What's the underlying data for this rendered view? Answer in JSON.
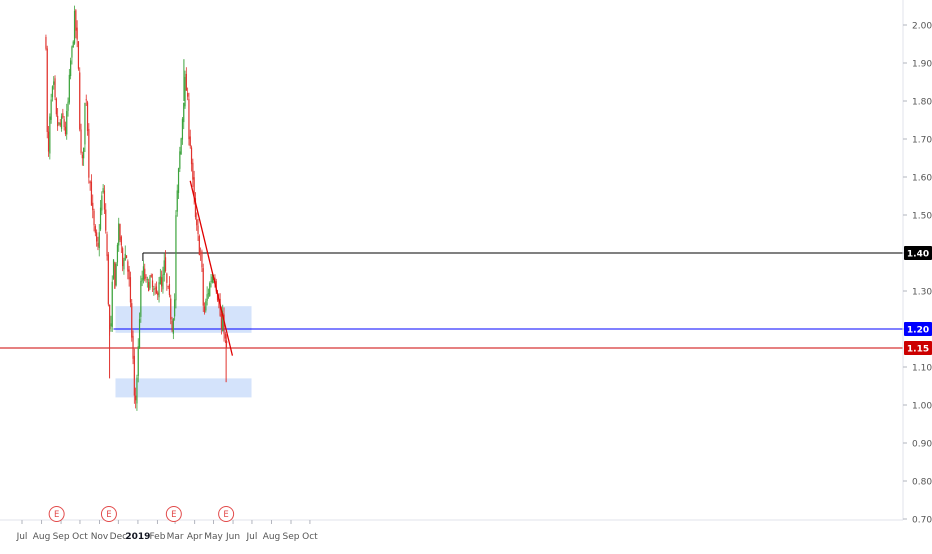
{
  "chart_data": {
    "type": "candlestick",
    "title": "",
    "xlabel": "",
    "ylabel": "",
    "ylim": [
      0.68,
      2.05
    ],
    "grid": false,
    "x_tick_labels": [
      "Jul",
      "Aug",
      "Sep",
      "Oct",
      "Nov",
      "Dec",
      "2019",
      "Feb",
      "Mar",
      "Apr",
      "May",
      "Jun",
      "Jul",
      "Aug",
      "Sep",
      "Oct"
    ],
    "y_tick_labels": [
      "0.70",
      "0.80",
      "0.90",
      "1.00",
      "1.10",
      "1.20",
      "1.30",
      "1.40",
      "1.50",
      "1.60",
      "1.70",
      "1.80",
      "1.90",
      "2.00"
    ],
    "y_ticks": [
      0.7,
      0.8,
      0.9,
      1.0,
      1.1,
      1.2,
      1.3,
      1.4,
      1.5,
      1.6,
      1.7,
      1.8,
      1.9,
      2.0
    ],
    "price_labels": [
      {
        "text": "1.40",
        "value": 1.4,
        "color": "#000000"
      },
      {
        "text": "1.20",
        "value": 1.2,
        "color": "#0000ff"
      },
      {
        "text": "1.15",
        "value": 1.15,
        "color": "#cc0000"
      }
    ],
    "earnings_markers": {
      "label": "E",
      "months": [
        "Aug",
        "Nov",
        "Feb",
        "May"
      ]
    },
    "horizontal_lines": [
      {
        "value": 1.4,
        "color": "#000000",
        "from": "2019-01"
      },
      {
        "value": 1.2,
        "color": "#0000ff",
        "from": "2018-11"
      },
      {
        "value": 1.15,
        "color": "#cc0000",
        "from": "2018-06"
      }
    ],
    "zones": [
      {
        "low": 1.19,
        "high": 1.26,
        "from": "2018-11",
        "to": "2019-05",
        "color": "#cfe0fb"
      },
      {
        "low": 1.02,
        "high": 1.07,
        "from": "2018-11",
        "to": "2019-05",
        "color": "#cfe0fb"
      }
    ],
    "trendline": {
      "from": {
        "date": "2019-03-25",
        "value": 1.59
      },
      "to": {
        "date": "2019-05-31",
        "value": 1.13
      },
      "color": "#e00000"
    },
    "colors": {
      "up": "#3da33d",
      "down": "#e0322d",
      "axis_text": "#555555"
    },
    "price_path": [
      [
        "2018-08-08",
        1.96
      ],
      [
        "2018-08-10",
        1.71
      ],
      [
        "2018-08-12",
        1.65
      ],
      [
        "2018-08-15",
        1.78
      ],
      [
        "2018-08-20",
        1.84
      ],
      [
        "2018-08-25",
        1.74
      ],
      [
        "2018-08-30",
        1.73
      ],
      [
        "2018-09-04",
        1.75
      ],
      [
        "2018-09-08",
        1.72
      ],
      [
        "2018-09-12",
        1.79
      ],
      [
        "2018-09-16",
        1.9
      ],
      [
        "2018-09-19",
        1.94
      ],
      [
        "2018-09-22",
        2.02
      ],
      [
        "2018-09-25",
        1.98
      ],
      [
        "2018-09-28",
        1.91
      ],
      [
        "2018-10-02",
        1.66
      ],
      [
        "2018-10-05",
        1.63
      ],
      [
        "2018-10-07",
        1.7
      ],
      [
        "2018-10-10",
        1.84
      ],
      [
        "2018-10-12",
        1.79
      ],
      [
        "2018-10-15",
        1.62
      ],
      [
        "2018-10-18",
        1.57
      ],
      [
        "2018-10-21",
        1.5
      ],
      [
        "2018-10-24",
        1.45
      ],
      [
        "2018-10-27",
        1.42
      ],
      [
        "2018-10-29",
        1.39
      ],
      [
        "2018-11-01",
        1.48
      ],
      [
        "2018-11-04",
        1.54
      ],
      [
        "2018-11-07",
        1.56
      ],
      [
        "2018-11-10",
        1.49
      ],
      [
        "2018-11-13",
        1.38
      ],
      [
        "2018-11-15",
        1.28
      ],
      [
        "2018-11-17",
        1.2
      ],
      [
        "2018-11-18",
        1.13
      ],
      [
        "2018-11-20",
        1.25
      ],
      [
        "2018-11-23",
        1.38
      ],
      [
        "2018-11-26",
        1.31
      ],
      [
        "2018-11-29",
        1.43
      ],
      [
        "2018-12-02",
        1.46
      ],
      [
        "2018-12-05",
        1.42
      ],
      [
        "2018-12-08",
        1.36
      ],
      [
        "2018-12-10",
        1.4
      ],
      [
        "2018-12-14",
        1.39
      ],
      [
        "2018-12-18",
        1.32
      ],
      [
        "2018-12-21",
        1.22
      ],
      [
        "2018-12-24",
        1.13
      ],
      [
        "2018-12-26",
        1.04
      ],
      [
        "2018-12-27",
        0.96
      ],
      [
        "2018-12-29",
        1.04
      ],
      [
        "2019-01-01",
        1.12
      ],
      [
        "2019-01-03",
        1.22
      ],
      [
        "2019-01-06",
        1.32
      ],
      [
        "2019-01-10",
        1.35
      ],
      [
        "2019-01-15",
        1.31
      ],
      [
        "2019-01-20",
        1.33
      ],
      [
        "2019-01-25",
        1.3
      ],
      [
        "2019-01-30",
        1.28
      ],
      [
        "2019-02-04",
        1.34
      ],
      [
        "2019-02-08",
        1.3
      ],
      [
        "2019-02-12",
        1.37
      ],
      [
        "2019-02-16",
        1.31
      ],
      [
        "2019-02-20",
        1.27
      ],
      [
        "2019-02-24",
        1.21
      ],
      [
        "2019-02-27",
        1.26
      ],
      [
        "2019-03-01",
        1.29
      ],
      [
        "2019-03-02",
        1.48
      ],
      [
        "2019-03-05",
        1.57
      ],
      [
        "2019-03-08",
        1.65
      ],
      [
        "2019-03-11",
        1.71
      ],
      [
        "2019-03-14",
        1.8
      ],
      [
        "2019-03-17",
        1.85
      ],
      [
        "2019-03-20",
        1.82
      ],
      [
        "2019-03-23",
        1.72
      ],
      [
        "2019-03-26",
        1.68
      ],
      [
        "2019-03-28",
        1.6
      ],
      [
        "2019-03-31",
        1.54
      ],
      [
        "2019-04-03",
        1.47
      ],
      [
        "2019-04-06",
        1.44
      ],
      [
        "2019-04-09",
        1.41
      ],
      [
        "2019-04-12",
        1.38
      ],
      [
        "2019-04-14",
        1.27
      ],
      [
        "2019-04-17",
        1.24
      ],
      [
        "2019-04-20",
        1.28
      ],
      [
        "2019-04-24",
        1.31
      ],
      [
        "2019-04-28",
        1.34
      ],
      [
        "2019-05-02",
        1.35
      ],
      [
        "2019-05-06",
        1.31
      ],
      [
        "2019-05-10",
        1.26
      ],
      [
        "2019-05-13",
        1.21
      ],
      [
        "2019-05-14",
        1.18
      ],
      [
        "2019-05-16",
        1.23
      ],
      [
        "2019-05-18",
        1.2
      ],
      [
        "2019-05-20",
        1.16
      ],
      [
        "2019-05-22",
        1.15
      ]
    ]
  }
}
